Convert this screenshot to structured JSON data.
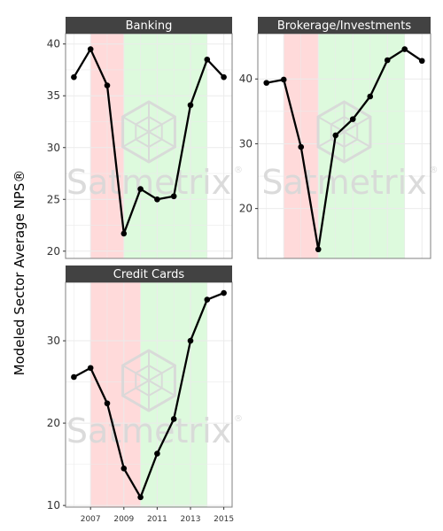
{
  "ylabel": "Modeled Sector Average NPS®",
  "watermark": "Satmetrix",
  "watermark_mark": "®",
  "colors": {
    "recession": "#ffdada",
    "recovery": "#ddfadd",
    "strip": "#424242",
    "line": "#000000",
    "grid": "#ebebeb",
    "watermark": "#d8d8d8"
  },
  "chart_data": [
    {
      "type": "line",
      "title": "Banking",
      "x": [
        2006,
        2007,
        2008,
        2009,
        2010,
        2011,
        2012,
        2013,
        2014,
        2015
      ],
      "series": [
        {
          "values": [
            36.8,
            39.5,
            36.0,
            21.7,
            26.0,
            25.0,
            25.3,
            34.1,
            38.5,
            36.8
          ]
        }
      ],
      "shaded_ranges": [
        {
          "from": 2007,
          "to": 2009,
          "color": "#ffdada"
        },
        {
          "from": 2009,
          "to": 2014,
          "color": "#ddfadd"
        }
      ],
      "xlim": [
        2005.5,
        2015.5
      ],
      "ylim": [
        19.3,
        41.0
      ],
      "yticks": [
        20,
        25,
        30,
        35,
        40
      ],
      "xticks": [],
      "grid": true
    },
    {
      "type": "line",
      "title": "Brokerage/Investments",
      "x": [
        2006,
        2007,
        2008,
        2009,
        2010,
        2011,
        2012,
        2013,
        2014,
        2015
      ],
      "series": [
        {
          "values": [
            39.4,
            39.9,
            29.5,
            13.7,
            31.3,
            33.8,
            37.3,
            42.9,
            44.6,
            42.8
          ]
        }
      ],
      "shaded_ranges": [
        {
          "from": 2007,
          "to": 2009,
          "color": "#ffdada"
        },
        {
          "from": 2009,
          "to": 2014,
          "color": "#ddfadd"
        }
      ],
      "xlim": [
        2005.5,
        2015.5
      ],
      "ylim": [
        12.3,
        47.0
      ],
      "yticks": [
        20,
        30,
        40
      ],
      "xticks": [],
      "grid": true
    },
    {
      "type": "line",
      "title": "Credit Cards",
      "x": [
        2006,
        2007,
        2008,
        2009,
        2010,
        2011,
        2012,
        2013,
        2014,
        2015
      ],
      "series": [
        {
          "values": [
            25.6,
            26.7,
            22.4,
            14.5,
            11.0,
            16.3,
            20.5,
            30.0,
            35.0,
            35.8
          ]
        }
      ],
      "shaded_ranges": [
        {
          "from": 2007,
          "to": 2010,
          "color": "#ffdada"
        },
        {
          "from": 2010,
          "to": 2014,
          "color": "#ddfadd"
        }
      ],
      "xlim": [
        2005.5,
        2015.5
      ],
      "ylim": [
        9.8,
        37.1
      ],
      "yticks": [
        10,
        20,
        30
      ],
      "xticks": [
        "2007",
        "2009",
        "2011",
        "2013",
        "2015"
      ],
      "grid": true
    }
  ]
}
